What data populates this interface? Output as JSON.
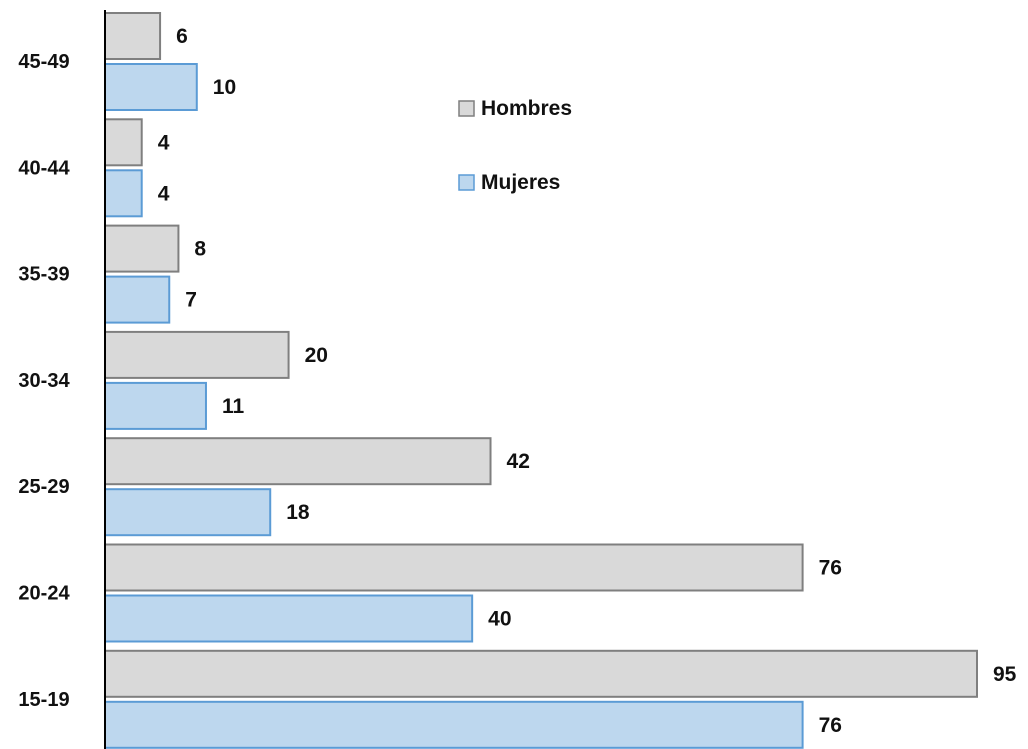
{
  "chart_data": {
    "type": "bar",
    "orientation": "horizontal",
    "categories": [
      "45-49",
      "40-44",
      "35-39",
      "30-34",
      "25-29",
      "20-24",
      "15-19"
    ],
    "series": [
      {
        "name": "Hombres",
        "values": [
          6,
          4,
          8,
          20,
          42,
          76,
          95
        ],
        "fill": "#d9d9d9",
        "stroke": "#7f7f7f"
      },
      {
        "name": "Mujeres",
        "values": [
          10,
          4,
          7,
          11,
          18,
          40,
          76
        ],
        "fill": "#bdd7ee",
        "stroke": "#5b9bd5"
      }
    ],
    "xlim": [
      0,
      95
    ],
    "grid": false,
    "legend_position": "upper-middle",
    "data_labels": true
  }
}
